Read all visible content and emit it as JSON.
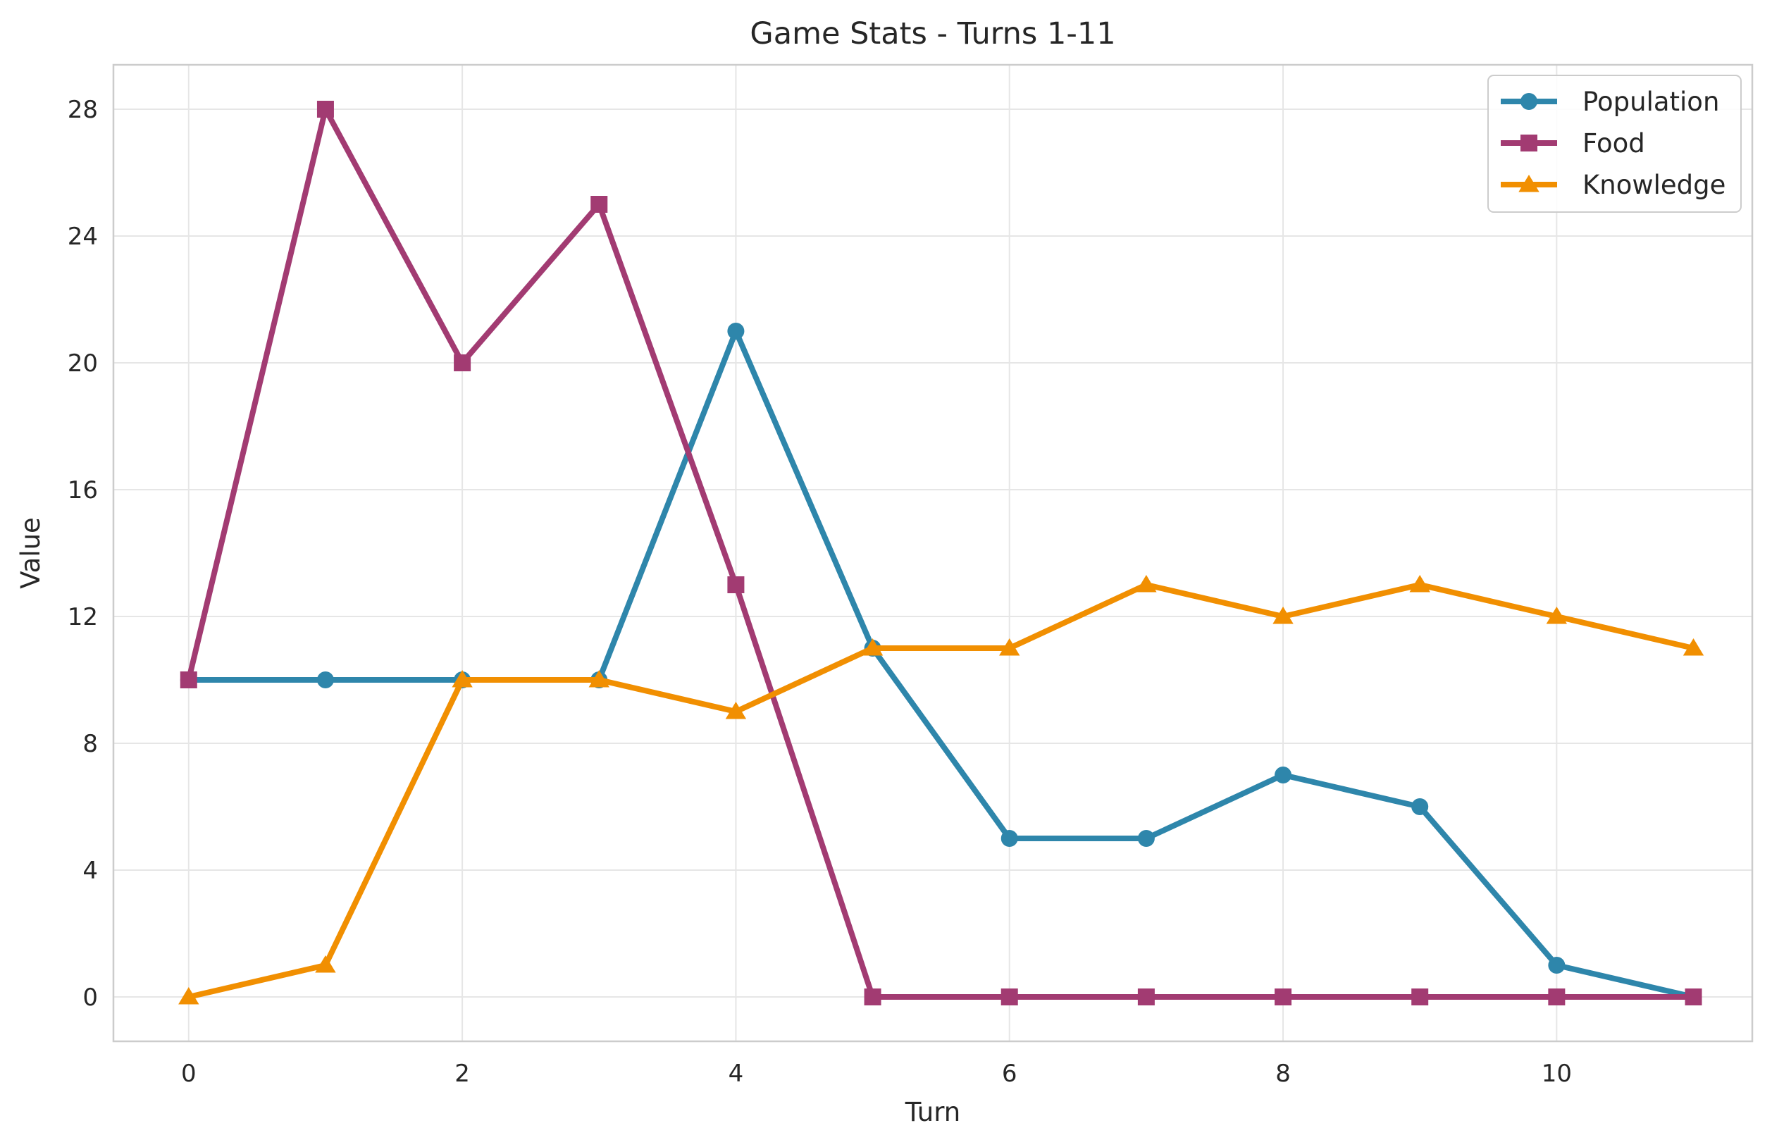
{
  "chart_data": {
    "type": "line",
    "title": "Game Stats - Turns 1-11",
    "xlabel": "Turn",
    "ylabel": "Value",
    "x": [
      0,
      1,
      2,
      3,
      4,
      5,
      6,
      7,
      8,
      9,
      10,
      11
    ],
    "xlim": [
      -0.55,
      11.43
    ],
    "ylim": [
      -1.4,
      29.4
    ],
    "xticks": [
      0,
      2,
      4,
      6,
      8,
      10
    ],
    "yticks": [
      0,
      4,
      8,
      12,
      16,
      20,
      24,
      28
    ],
    "xtick_labels": [
      "0",
      "2",
      "4",
      "6",
      "8",
      "10"
    ],
    "ytick_labels": [
      "0",
      "4",
      "8",
      "12",
      "16",
      "20",
      "24",
      "28"
    ],
    "grid": true,
    "legend_position": "top-right",
    "series": [
      {
        "name": "Population",
        "color": "#2e86ab",
        "marker": "circle",
        "values": [
          10,
          10,
          10,
          10,
          21,
          11,
          5,
          5,
          7,
          6,
          1,
          0
        ]
      },
      {
        "name": "Food",
        "color": "#a23b72",
        "marker": "square",
        "values": [
          10,
          28,
          20,
          25,
          13,
          0,
          0,
          0,
          0,
          0,
          0,
          0
        ]
      },
      {
        "name": "Knowledge",
        "color": "#f18f01",
        "marker": "triangle",
        "values": [
          0,
          1,
          10,
          10,
          9,
          11,
          11,
          13,
          12,
          13,
          12,
          11
        ]
      }
    ]
  }
}
